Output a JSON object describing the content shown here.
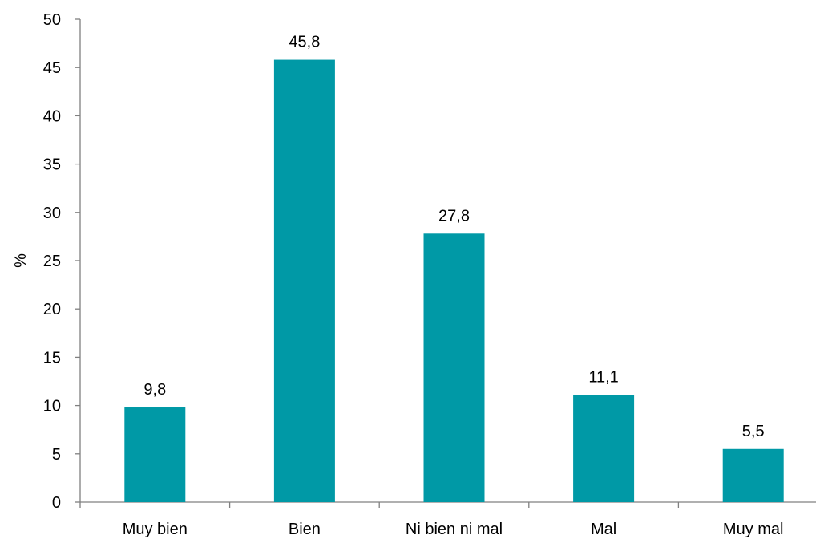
{
  "chart_data": {
    "type": "bar",
    "title": "",
    "xlabel": "",
    "ylabel": "%",
    "categories": [
      "Muy bien",
      "Bien",
      "Ni bien ni mal",
      "Mal",
      "Muy mal"
    ],
    "values": [
      9.8,
      45.8,
      27.8,
      11.1,
      5.5
    ],
    "value_labels": [
      "9,8",
      "45,8",
      "27,8",
      "11,1",
      "5,5"
    ],
    "ylim": [
      0,
      50
    ],
    "yticks": [
      0,
      5,
      10,
      15,
      20,
      25,
      30,
      35,
      40,
      45,
      50
    ],
    "grid": false,
    "legend": "none",
    "bar_color": "#0099A6"
  }
}
